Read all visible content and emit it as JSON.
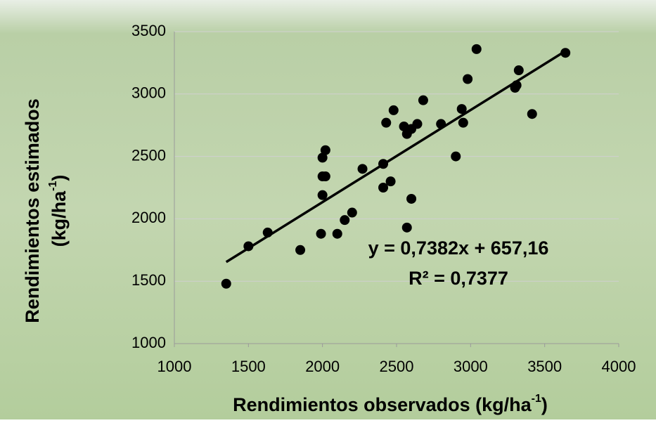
{
  "chart_data": {
    "type": "scatter",
    "x_label": [
      "Rendimientos observados (kg/ha",
      "-1",
      ")"
    ],
    "y_label": [
      "Rendimientos estimados",
      "(kg/ha",
      "-1",
      ")"
    ],
    "x": [
      1350,
      1500,
      1630,
      1850,
      1990,
      2100,
      2150,
      2200,
      2000,
      2000,
      2020,
      2000,
      2020,
      2270,
      2410,
      2410,
      2460,
      2430,
      2480,
      2570,
      2600,
      2550,
      2570,
      2600,
      2640,
      2680,
      2800,
      2900,
      2940,
      2950,
      2980,
      3040,
      3300,
      3310,
      3325,
      3415,
      3640
    ],
    "y": [
      1480,
      1780,
      1890,
      1750,
      1880,
      1880,
      1990,
      2050,
      2190,
      2340,
      2340,
      2490,
      2550,
      2400,
      2440,
      2250,
      2300,
      2770,
      2870,
      1930,
      2160,
      2740,
      2680,
      2720,
      2760,
      2950,
      2760,
      2500,
      2880,
      2770,
      3120,
      3360,
      3050,
      3070,
      3190,
      2840,
      3330
    ],
    "color": "#000000",
    "xlim": [
      1000,
      4000
    ],
    "xticks": [
      1000,
      1500,
      2000,
      2500,
      3000,
      3500,
      4000
    ],
    "ylim": [
      1000,
      3500
    ],
    "yticks": [
      1000,
      1500,
      2000,
      2500,
      3000,
      3500
    ],
    "grid": true,
    "trendline": {
      "slope": 0.7382,
      "intercept": 657.16,
      "equation": "y = 0,7382x + 657,16",
      "r2": 0.7377,
      "r2_label": "R² = 0,7377"
    }
  }
}
